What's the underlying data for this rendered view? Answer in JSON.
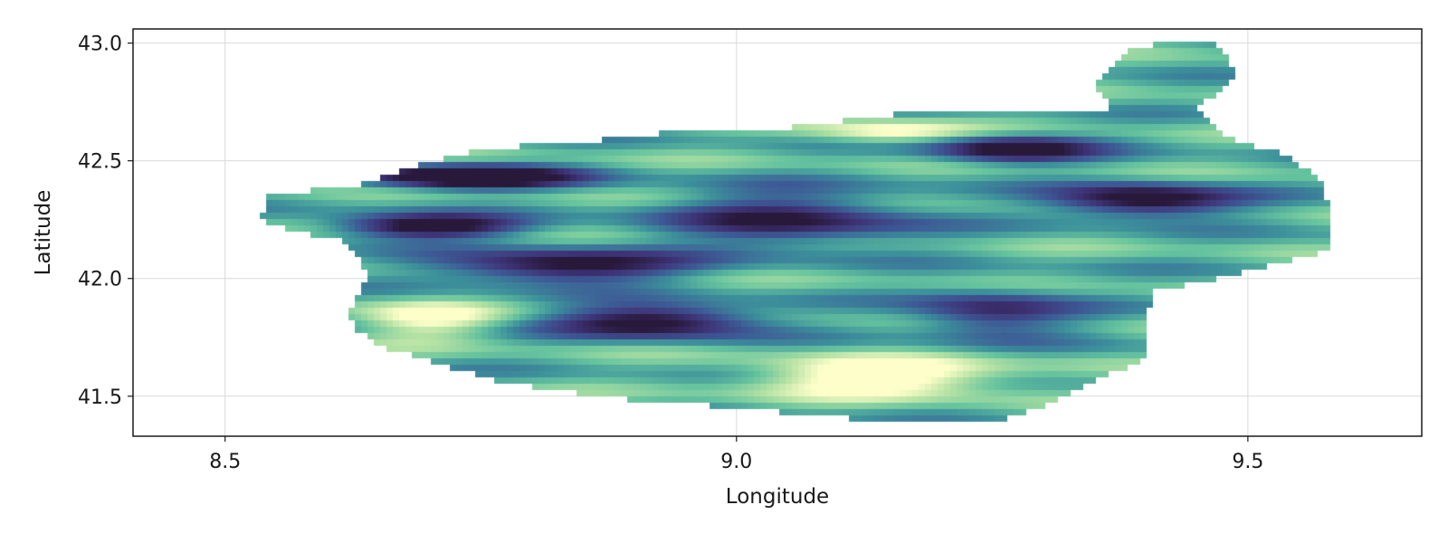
{
  "chart_data": {
    "type": "heatmap",
    "title": "",
    "xlabel": "Longitude",
    "ylabel": "Latitude",
    "xlim": [
      8.41,
      9.67
    ],
    "ylim": [
      41.33,
      43.06
    ],
    "x_ticks": [
      {
        "value": 8.5,
        "label": "8.5"
      },
      {
        "value": 9.0,
        "label": "9.0"
      },
      {
        "value": 9.5,
        "label": "9.5"
      }
    ],
    "y_ticks": [
      {
        "value": 41.5,
        "label": "41.5"
      },
      {
        "value": 42.0,
        "label": "42.0"
      },
      {
        "value": 42.5,
        "label": "42.5"
      },
      {
        "value": 43.0,
        "label": "43.0"
      }
    ],
    "grid": true,
    "legend": "none",
    "colormap": [
      "#fdfec9",
      "#b3e1a4",
      "#65c39e",
      "#3c8f9b",
      "#3d5a96",
      "#3e3377",
      "#28183a"
    ],
    "region_extent": {
      "lon": [
        8.53,
        9.58
      ],
      "lat": [
        41.36,
        43.04
      ]
    },
    "outline": [
      [
        8.54,
        42.35
      ],
      [
        8.63,
        42.4
      ],
      [
        8.68,
        42.47
      ],
      [
        8.75,
        42.55
      ],
      [
        8.85,
        42.58
      ],
      [
        8.95,
        42.63
      ],
      [
        9.05,
        42.64
      ],
      [
        9.12,
        42.68
      ],
      [
        9.2,
        42.72
      ],
      [
        9.29,
        42.71
      ],
      [
        9.34,
        42.7
      ],
      [
        9.37,
        42.73
      ],
      [
        9.35,
        42.8
      ],
      [
        9.36,
        42.88
      ],
      [
        9.38,
        42.96
      ],
      [
        9.43,
        43.02
      ],
      [
        9.47,
        43.0
      ],
      [
        9.49,
        42.86
      ],
      [
        9.45,
        42.72
      ],
      [
        9.48,
        42.6
      ],
      [
        9.54,
        42.52
      ],
      [
        9.57,
        42.42
      ],
      [
        9.58,
        42.32
      ],
      [
        9.58,
        42.12
      ],
      [
        9.52,
        42.05
      ],
      [
        9.46,
        41.99
      ],
      [
        9.41,
        41.95
      ],
      [
        9.4,
        41.84
      ],
      [
        9.4,
        41.66
      ],
      [
        9.37,
        41.6
      ],
      [
        9.3,
        41.46
      ],
      [
        9.25,
        41.38
      ],
      [
        9.12,
        41.4
      ],
      [
        9.0,
        41.45
      ],
      [
        8.88,
        41.49
      ],
      [
        8.78,
        41.55
      ],
      [
        8.72,
        41.62
      ],
      [
        8.66,
        41.7
      ],
      [
        8.63,
        41.77
      ],
      [
        8.62,
        41.85
      ],
      [
        8.63,
        41.93
      ],
      [
        8.64,
        42.0
      ],
      [
        8.63,
        42.08
      ],
      [
        8.62,
        42.15
      ],
      [
        8.57,
        42.2
      ],
      [
        8.53,
        42.25
      ],
      [
        8.54,
        42.3
      ]
    ],
    "intensity_field": [
      {
        "lon": 8.74,
        "lat": 42.43,
        "value": 0.95,
        "sx": 0.1,
        "sy": 0.05
      },
      {
        "lon": 8.7,
        "lat": 42.22,
        "value": 0.8,
        "sx": 0.09,
        "sy": 0.05
      },
      {
        "lon": 8.83,
        "lat": 42.05,
        "value": 0.7,
        "sx": 0.12,
        "sy": 0.07
      },
      {
        "lon": 8.92,
        "lat": 41.82,
        "value": 0.75,
        "sx": 0.1,
        "sy": 0.07
      },
      {
        "lon": 9.05,
        "lat": 42.25,
        "value": 0.55,
        "sx": 0.12,
        "sy": 0.12
      },
      {
        "lon": 9.27,
        "lat": 42.55,
        "value": 0.7,
        "sx": 0.08,
        "sy": 0.06
      },
      {
        "lon": 9.4,
        "lat": 42.33,
        "value": 0.75,
        "sx": 0.09,
        "sy": 0.07
      },
      {
        "lon": 9.25,
        "lat": 41.85,
        "value": 0.5,
        "sx": 0.08,
        "sy": 0.1
      },
      {
        "lon": 9.14,
        "lat": 41.58,
        "value": -0.6,
        "sx": 0.12,
        "sy": 0.08
      },
      {
        "lon": 9.15,
        "lat": 42.62,
        "value": -0.4,
        "sx": 0.08,
        "sy": 0.05
      },
      {
        "lon": 8.7,
        "lat": 41.82,
        "value": -0.4,
        "sx": 0.07,
        "sy": 0.08
      }
    ]
  }
}
